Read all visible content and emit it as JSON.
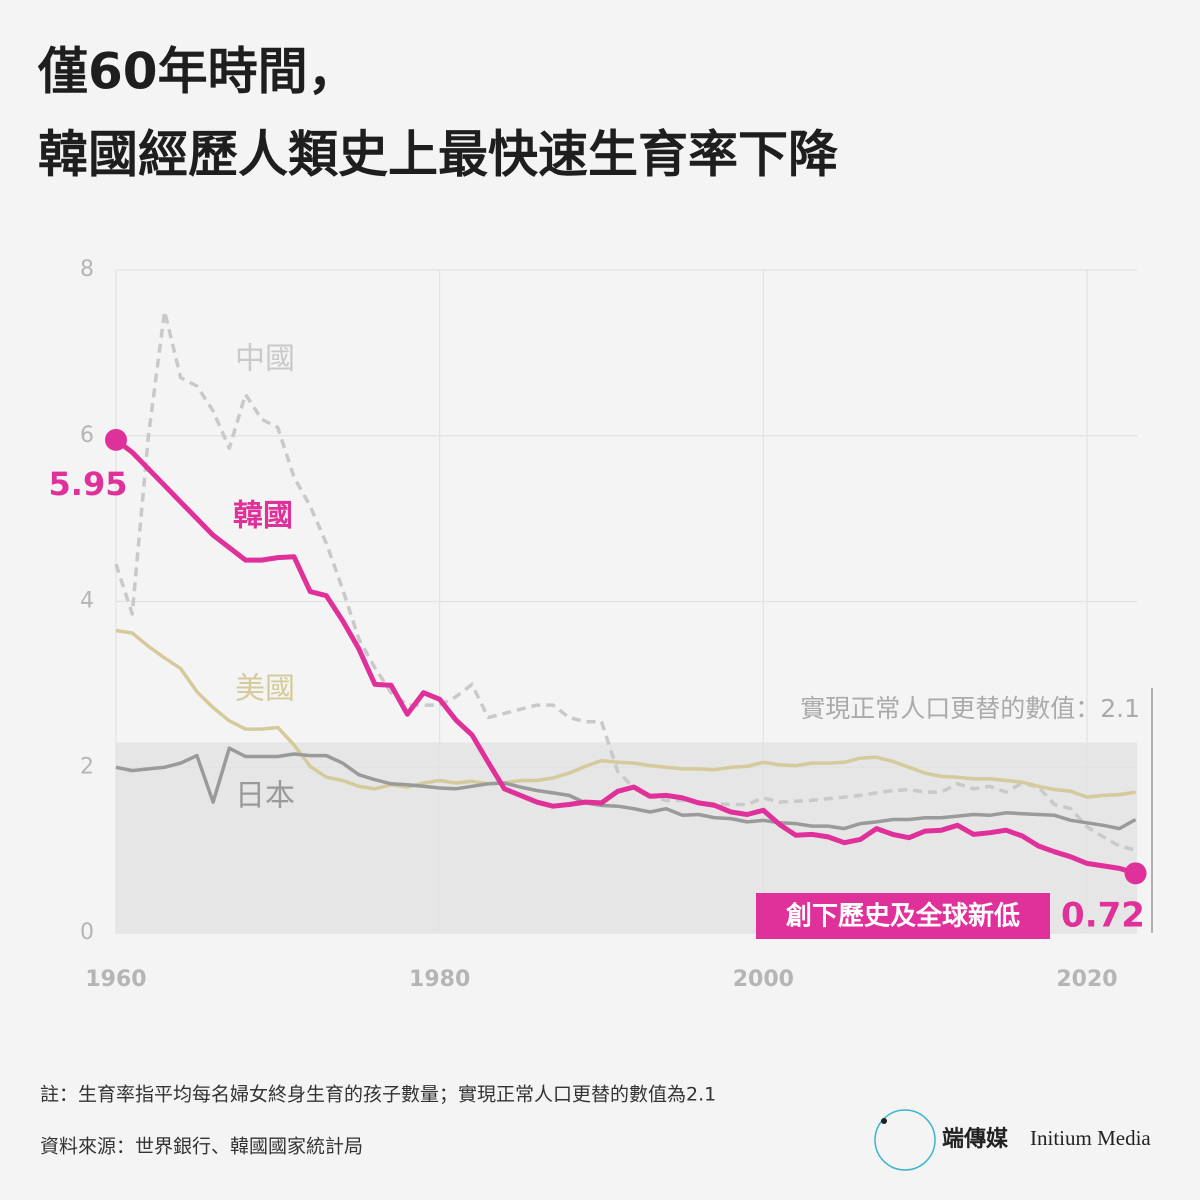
{
  "chart_data": {
    "type": "line",
    "title": [
      "僅60年時間，",
      "韓國經歷人類史上最快速生育率下降"
    ],
    "x": [
      1960,
      1961,
      1962,
      1963,
      1964,
      1965,
      1966,
      1967,
      1968,
      1969,
      1970,
      1971,
      1972,
      1973,
      1974,
      1975,
      1976,
      1977,
      1978,
      1979,
      1980,
      1981,
      1982,
      1983,
      1984,
      1985,
      1986,
      1987,
      1988,
      1989,
      1990,
      1991,
      1992,
      1993,
      1994,
      1995,
      1996,
      1997,
      1998,
      1999,
      2000,
      2001,
      2002,
      2003,
      2004,
      2005,
      2006,
      2007,
      2008,
      2009,
      2010,
      2011,
      2012,
      2013,
      2014,
      2015,
      2016,
      2017,
      2018,
      2019,
      2020,
      2021,
      2022,
      2023
    ],
    "xlim": [
      1960,
      2023.7
    ],
    "xticks": [
      1960,
      1980,
      2000,
      2020
    ],
    "ylim": [
      0,
      8
    ],
    "yticks": [
      0,
      2,
      4,
      6,
      8
    ],
    "grid": true,
    "shaded_band": [
      0,
      2.3
    ],
    "series": [
      {
        "name": "中國",
        "color": "#c9c9c9",
        "dash": true,
        "values": [
          4.45,
          3.85,
          6.0,
          7.5,
          6.7,
          6.6,
          6.3,
          5.85,
          6.5,
          6.2,
          6.1,
          5.5,
          5.15,
          4.7,
          4.15,
          3.55,
          3.2,
          2.9,
          2.75,
          2.75,
          2.75,
          2.85,
          3.0,
          2.6,
          2.65,
          2.7,
          2.75,
          2.75,
          2.6,
          2.55,
          2.55,
          1.95,
          1.75,
          1.65,
          1.6,
          1.6,
          1.58,
          1.56,
          1.55,
          1.55,
          1.63,
          1.58,
          1.59,
          1.6,
          1.62,
          1.64,
          1.66,
          1.69,
          1.72,
          1.73,
          1.7,
          1.7,
          1.8,
          1.74,
          1.77,
          1.7,
          1.81,
          1.76,
          1.55,
          1.5,
          1.28,
          1.16,
          1.05,
          1.0
        ]
      },
      {
        "name": "美國",
        "color": "#d5ca9b",
        "dash": false,
        "values": [
          3.65,
          3.62,
          3.46,
          3.32,
          3.19,
          2.91,
          2.72,
          2.56,
          2.46,
          2.46,
          2.48,
          2.27,
          2.01,
          1.88,
          1.84,
          1.77,
          1.74,
          1.79,
          1.76,
          1.81,
          1.84,
          1.81,
          1.83,
          1.8,
          1.81,
          1.84,
          1.84,
          1.87,
          1.93,
          2.01,
          2.08,
          2.06,
          2.05,
          2.02,
          2.0,
          1.98,
          1.98,
          1.97,
          2.0,
          2.01,
          2.06,
          2.03,
          2.02,
          2.05,
          2.05,
          2.06,
          2.11,
          2.12,
          2.07,
          2.0,
          1.93,
          1.89,
          1.88,
          1.86,
          1.86,
          1.84,
          1.82,
          1.77,
          1.73,
          1.71,
          1.64,
          1.66,
          1.67,
          1.7
        ]
      },
      {
        "name": "日本",
        "color": "#9a9a9a",
        "dash": false,
        "values": [
          2.0,
          1.96,
          1.98,
          2.0,
          2.05,
          2.14,
          1.58,
          2.23,
          2.13,
          2.13,
          2.13,
          2.16,
          2.14,
          2.14,
          2.05,
          1.91,
          1.85,
          1.8,
          1.79,
          1.77,
          1.75,
          1.74,
          1.77,
          1.8,
          1.81,
          1.76,
          1.72,
          1.69,
          1.66,
          1.57,
          1.54,
          1.53,
          1.5,
          1.46,
          1.5,
          1.42,
          1.43,
          1.39,
          1.38,
          1.34,
          1.36,
          1.33,
          1.32,
          1.29,
          1.29,
          1.26,
          1.32,
          1.34,
          1.37,
          1.37,
          1.39,
          1.39,
          1.41,
          1.43,
          1.42,
          1.45,
          1.44,
          1.43,
          1.42,
          1.36,
          1.33,
          1.3,
          1.26,
          1.37
        ]
      },
      {
        "name": "韓國",
        "color": "#e0309a",
        "dash": false,
        "values": [
          5.95,
          5.8,
          5.6,
          5.4,
          5.2,
          5.0,
          4.8,
          4.65,
          4.5,
          4.5,
          4.53,
          4.54,
          4.12,
          4.07,
          3.77,
          3.43,
          3.0,
          2.99,
          2.64,
          2.9,
          2.82,
          2.57,
          2.39,
          2.06,
          1.74,
          1.66,
          1.58,
          1.53,
          1.55,
          1.58,
          1.57,
          1.71,
          1.76,
          1.65,
          1.66,
          1.63,
          1.57,
          1.54,
          1.46,
          1.43,
          1.48,
          1.31,
          1.18,
          1.19,
          1.16,
          1.09,
          1.13,
          1.26,
          1.19,
          1.15,
          1.23,
          1.24,
          1.3,
          1.19,
          1.21,
          1.24,
          1.17,
          1.05,
          0.98,
          0.92,
          0.84,
          0.81,
          0.78,
          0.72
        ]
      }
    ],
    "annotations": {
      "replacement": "實現正常人口更替的數值：2.1",
      "record_low": "創下歷史及全球新低"
    },
    "note": "註：生育率指平均每名婦女終身生育的孩子數量；實現正常人口更替的數值為2.1",
    "source": "資料來源：世界銀行、韓國國家統計局",
    "brand": {
      "chinese": "端傳媒",
      "english": "Initium Media"
    }
  }
}
